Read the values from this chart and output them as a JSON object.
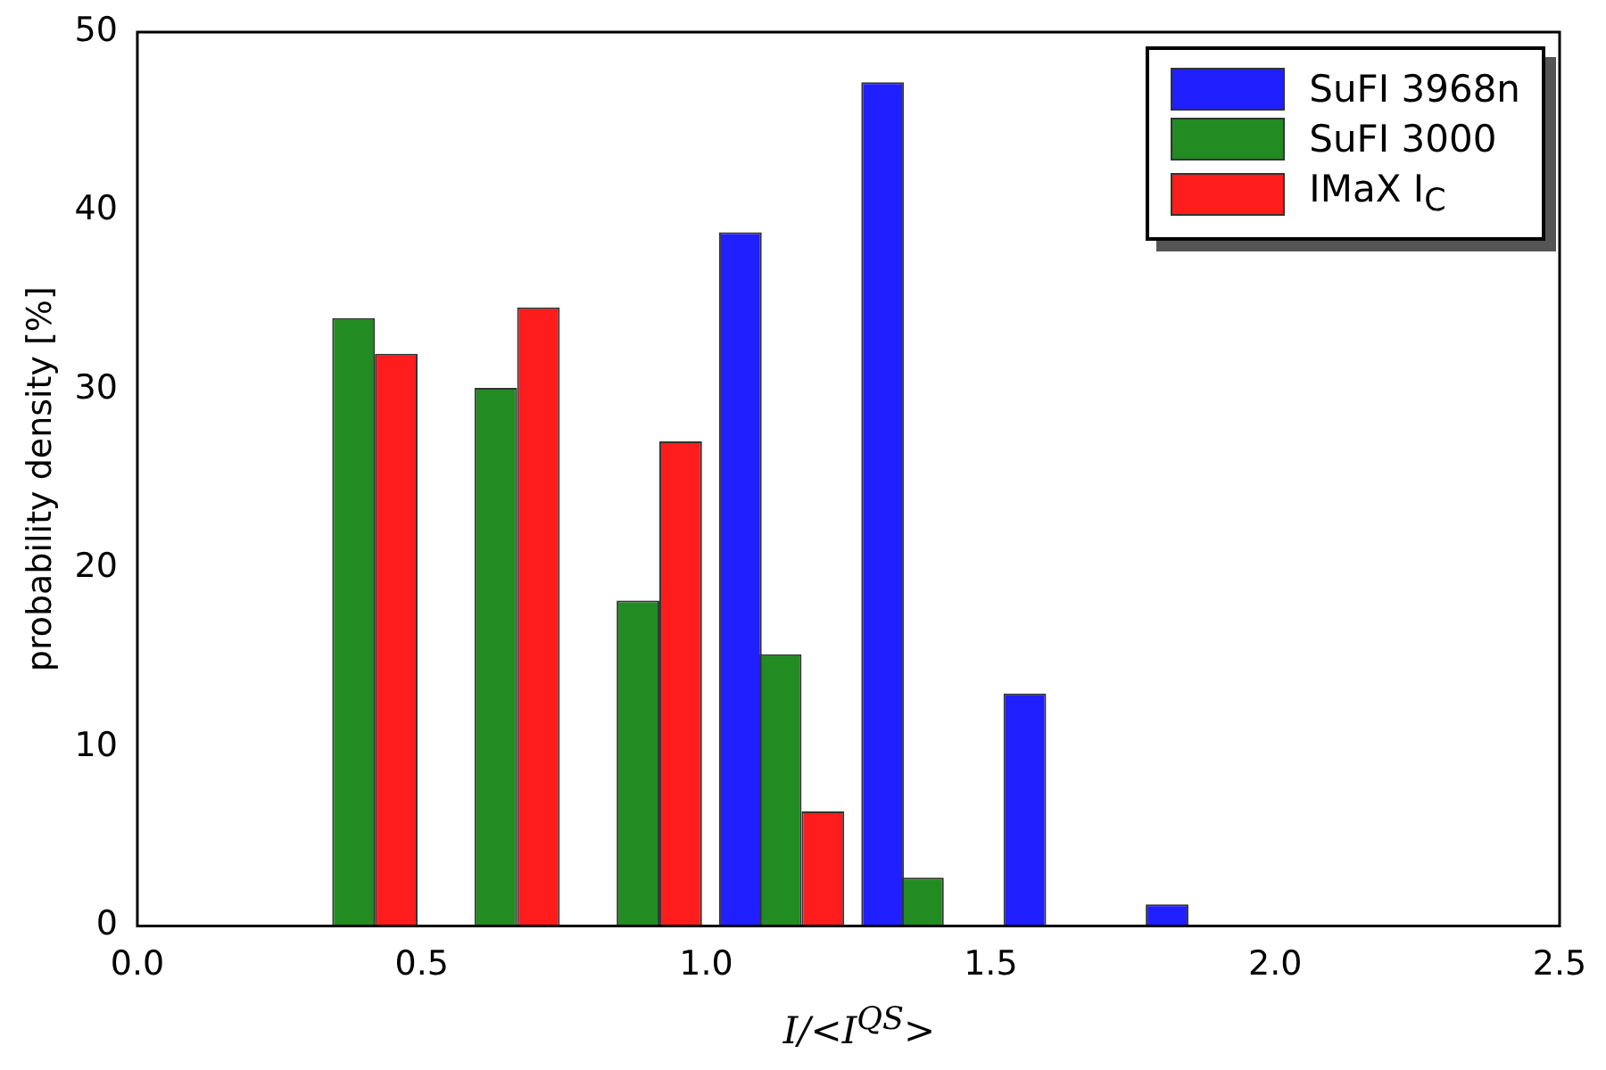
{
  "chart_data": {
    "type": "bar",
    "xlabel": "I/<I$^{QS}$>",
    "ylabel": "probability density [%]",
    "xlim": [
      0,
      2.5
    ],
    "xticks": [
      {
        "value": 0,
        "label": "0.0"
      },
      {
        "value": 0.5,
        "label": "0.5"
      },
      {
        "value": 1,
        "label": "1.0"
      },
      {
        "value": 1.5,
        "label": "1.5"
      },
      {
        "value": 2,
        "label": "2.0"
      },
      {
        "value": 2.5,
        "label": "2.5"
      }
    ],
    "ylim": [
      0,
      50
    ],
    "yticks": [
      0,
      10,
      20,
      30,
      40,
      50
    ],
    "grid": false,
    "legend": "top right",
    "series": [
      {
        "name": "SuFI 3968n",
        "color": "#1f1fff",
        "x": [
          1.06,
          1.31,
          1.56,
          1.81
        ],
        "values": [
          38.8,
          47.2,
          13,
          1.2
        ]
      },
      {
        "name": "SuFI 3000",
        "color": "#228b22",
        "x": [
          0.38,
          0.63,
          0.88,
          1.13,
          1.38
        ],
        "values": [
          34,
          30.1,
          18.2,
          15.2,
          2.7
        ]
      },
      {
        "name": "IMaX I$_{C}$",
        "color": "#ff1c1c",
        "x": [
          0.455,
          0.705,
          0.955,
          1.205
        ],
        "values": [
          32,
          34.6,
          27.1,
          6.4
        ]
      }
    ]
  }
}
